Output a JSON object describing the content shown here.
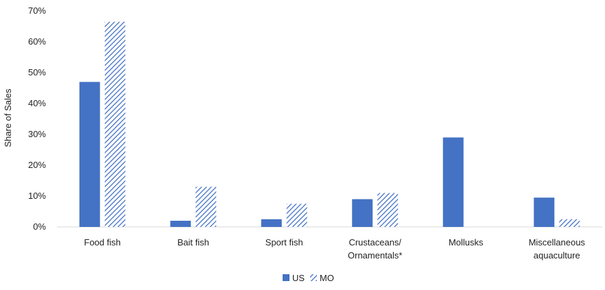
{
  "chart_data": {
    "type": "bar",
    "title": "",
    "xlabel": "",
    "ylabel": "Share of Sales",
    "ylim": [
      0,
      70
    ],
    "yticks": [
      "0%",
      "10%",
      "20%",
      "30%",
      "40%",
      "50%",
      "60%",
      "70%"
    ],
    "y_tick_values": [
      0,
      10,
      20,
      30,
      40,
      50,
      60,
      70
    ],
    "grid": false,
    "legend_position": "bottom",
    "categories": [
      [
        "Food fish"
      ],
      [
        "Bait fish"
      ],
      [
        "Sport fish"
      ],
      [
        "Crustaceans/",
        "Ornamentals*"
      ],
      [
        "Mollusks"
      ],
      [
        "Miscellaneous",
        "aquaculture"
      ]
    ],
    "series": [
      {
        "name": "US",
        "values": [
          47,
          2,
          2.5,
          9,
          29,
          9.5
        ],
        "color": "#4472c4",
        "pattern": "solid"
      },
      {
        "name": "MO",
        "values": [
          66.5,
          13,
          7.5,
          11,
          0,
          2.5
        ],
        "color": "#4472c4",
        "pattern": "diagonal-hatch"
      }
    ]
  }
}
